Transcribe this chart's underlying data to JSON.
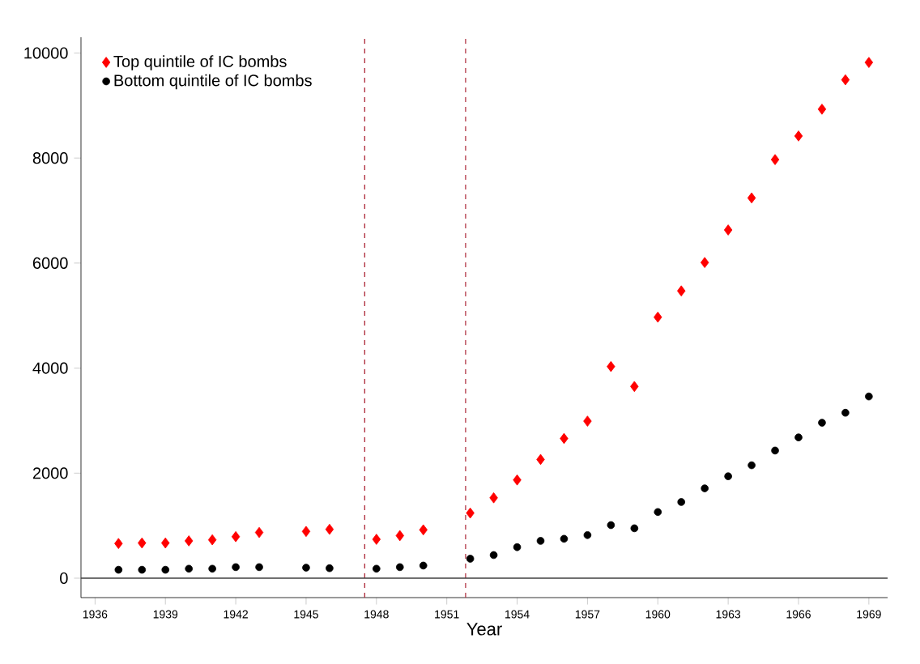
{
  "chart_data": {
    "type": "scatter",
    "xlabel": "Year",
    "x": [
      1937,
      1938,
      1939,
      1940,
      1941,
      1942,
      1943,
      1945,
      1946,
      1948,
      1949,
      1950,
      1952,
      1953,
      1954,
      1955,
      1956,
      1957,
      1958,
      1959,
      1960,
      1961,
      1962,
      1963,
      1964,
      1965,
      1966,
      1967,
      1968,
      1969
    ],
    "series": [
      {
        "name": "Top quintile of IC bombs",
        "color": "#ff0000",
        "marker": "diamond",
        "values": [
          660,
          670,
          670,
          710,
          730,
          790,
          870,
          890,
          930,
          740,
          810,
          920,
          1240,
          1530,
          1870,
          2260,
          2660,
          2990,
          4030,
          3650,
          4970,
          5470,
          6010,
          6630,
          7240,
          7970,
          8420,
          8930,
          9490,
          9820
        ]
      },
      {
        "name": "Bottom quintile of IC bombs",
        "color": "#000000",
        "marker": "circle",
        "values": [
          160,
          160,
          160,
          180,
          180,
          210,
          210,
          200,
          190,
          180,
          210,
          240,
          370,
          440,
          590,
          710,
          750,
          820,
          1010,
          950,
          1260,
          1450,
          1710,
          1940,
          2150,
          2430,
          2680,
          2960,
          3150,
          3460
        ]
      }
    ],
    "xlim": [
      1935.4,
      1969.8
    ],
    "ylim": [
      -370,
      10300
    ],
    "xticks": [
      1936,
      1939,
      1942,
      1945,
      1948,
      1951,
      1954,
      1957,
      1960,
      1963,
      1966,
      1969
    ],
    "yticks": [
      0,
      2000,
      4000,
      6000,
      8000,
      10000
    ],
    "ref_lines": [
      {
        "axis": "x",
        "value": 1947.5,
        "color": "#b03040",
        "line_style": "dashed"
      },
      {
        "axis": "x",
        "value": 1951.8,
        "color": "#b03040",
        "line_style": "dashed"
      },
      {
        "axis": "y",
        "value": 0,
        "color": "#404040",
        "line_style": "solid"
      }
    ],
    "legend": "top left",
    "grid": false
  }
}
